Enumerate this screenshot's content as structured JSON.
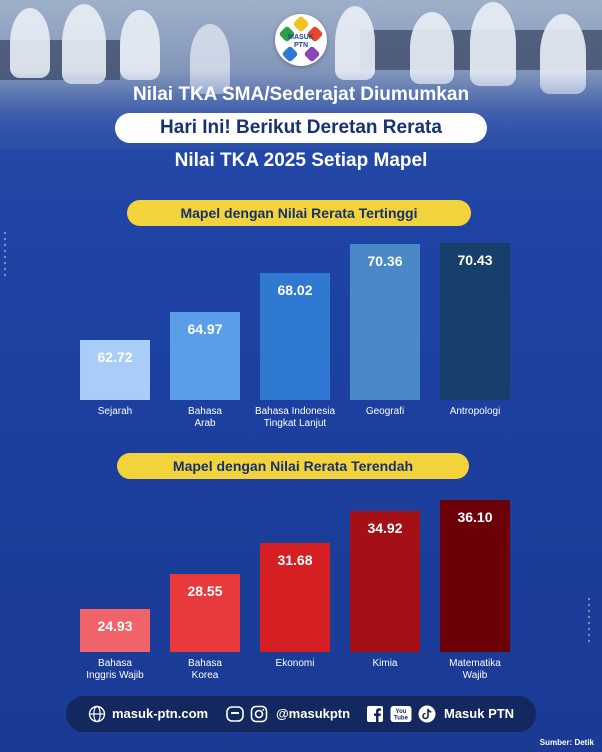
{
  "brand": {
    "logo_line1": "MASUK",
    "logo_line2": "PTN"
  },
  "header": {
    "line1": "Nilai TKA SMA/Sederajat Diumumkan",
    "line2": "Hari Ini! Berikut Deretan Rerata",
    "line3": "Nilai TKA 2025 Setiap Mapel"
  },
  "colors": {
    "background": "#1f44a6",
    "pill": "#f3d33b",
    "footer": "#12285e"
  },
  "chart_data": [
    {
      "type": "bar",
      "title": "Mapel dengan Nilai Rerata Tertinggi",
      "categories": [
        "Sejarah",
        "Bahasa\nArab",
        "Bahasa Indonesia\nTingkat Lanjut",
        "Geografi",
        "Antropologi"
      ],
      "values": [
        62.72,
        64.97,
        68.02,
        70.36,
        70.43
      ],
      "value_labels": [
        "62.72",
        "64.97",
        "68.02",
        "70.36",
        "70.43"
      ],
      "bar_colors": [
        "#a9cdf7",
        "#5b9ee8",
        "#2f79d2",
        "#4a88c7",
        "#173f6c"
      ],
      "ylim": [
        58,
        70.43
      ]
    },
    {
      "type": "bar",
      "title": "Mapel dengan Nilai Rerata Terendah",
      "categories": [
        "Bahasa\nInggris Wajib",
        "Bahasa\nKorea",
        "Ekonomi",
        "Kimia",
        "Matematika\nWajib"
      ],
      "values": [
        24.93,
        28.55,
        31.68,
        34.92,
        36.1
      ],
      "value_labels": [
        "24.93",
        "28.55",
        "31.68",
        "34.92",
        "36.10"
      ],
      "bar_colors": [
        "#f06469",
        "#e83a3c",
        "#d61f22",
        "#a51016",
        "#6b0006"
      ],
      "ylim": [
        20.5,
        36.1
      ]
    }
  ],
  "footer": {
    "website": "masuk-ptn.com",
    "handle": "@masukptn",
    "brand_name": "Masuk PTN",
    "youtube_line1": "You",
    "youtube_line2": "Tube"
  },
  "source": "Sumber: Detik"
}
